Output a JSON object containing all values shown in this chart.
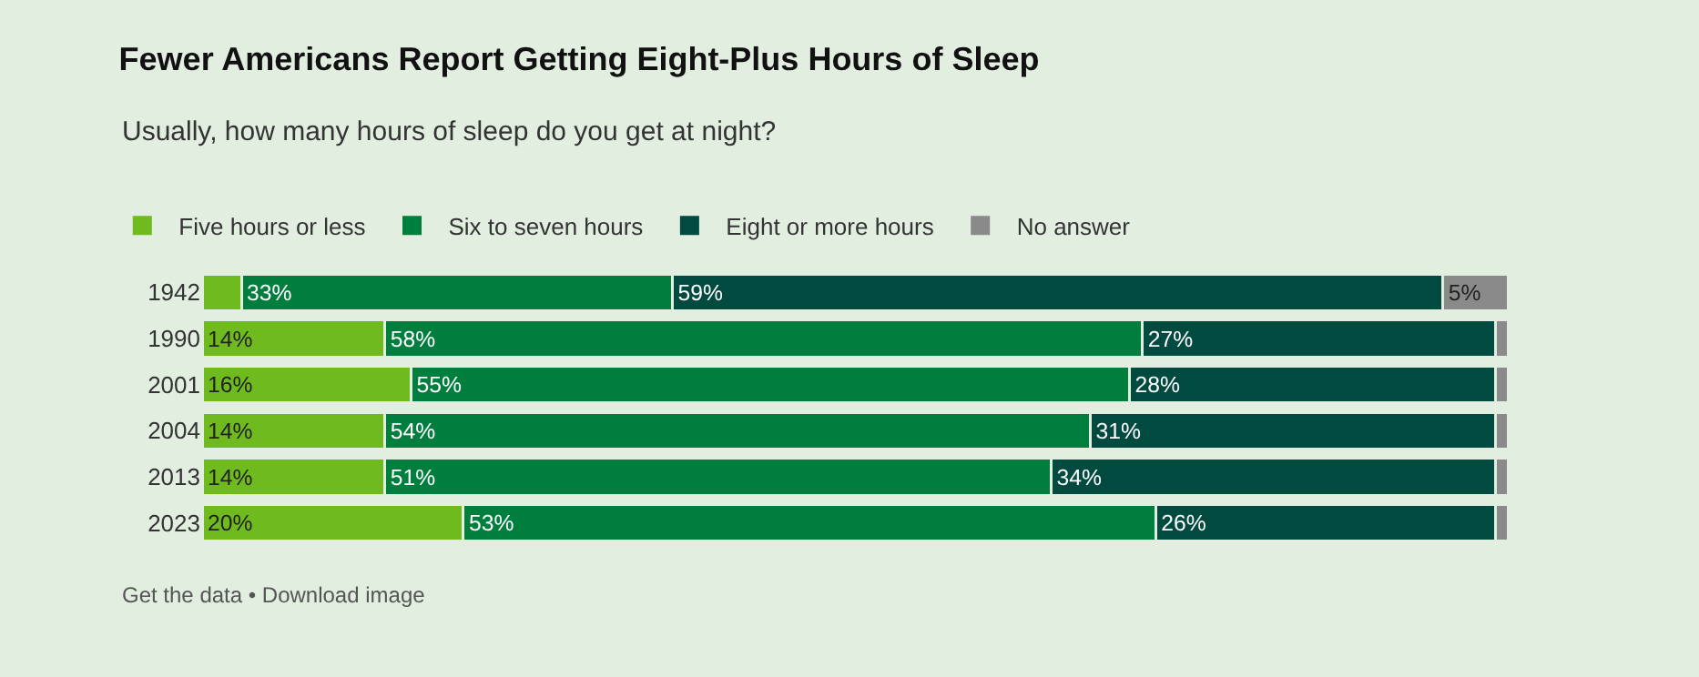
{
  "chart_data": {
    "type": "bar",
    "orientation": "horizontal",
    "stacked": true,
    "title": "Fewer Americans Report Getting Eight-Plus Hours of Sleep",
    "subtitle": "Usually, how many hours of sleep do you get at night?",
    "categories": [
      "1942",
      "1990",
      "2001",
      "2004",
      "2013",
      "2023"
    ],
    "series": [
      {
        "name": "Five hours or less",
        "color": "#6fba1f",
        "values": [
          3,
          14,
          16,
          14,
          14,
          20
        ],
        "value_labels": [
          null,
          "14%",
          "16%",
          "14%",
          "14%",
          "20%"
        ]
      },
      {
        "name": "Six to seven hours",
        "color": "#007e3e",
        "values": [
          33,
          58,
          55,
          54,
          51,
          53
        ],
        "value_labels": [
          "33%",
          "58%",
          "55%",
          "54%",
          "51%",
          "53%"
        ]
      },
      {
        "name": "Eight or more hours",
        "color": "#004a3f",
        "values": [
          59,
          27,
          28,
          31,
          34,
          26
        ],
        "value_labels": [
          "59%",
          "27%",
          "28%",
          "31%",
          "34%",
          "26%"
        ]
      },
      {
        "name": "No answer",
        "color": "#8a8a8a",
        "values": [
          5,
          1,
          1,
          1,
          1,
          1
        ],
        "value_labels": [
          "5%",
          null,
          null,
          null,
          null,
          null
        ]
      }
    ],
    "legend": "top left",
    "annotations": [
      "Get the data • Download image"
    ]
  }
}
